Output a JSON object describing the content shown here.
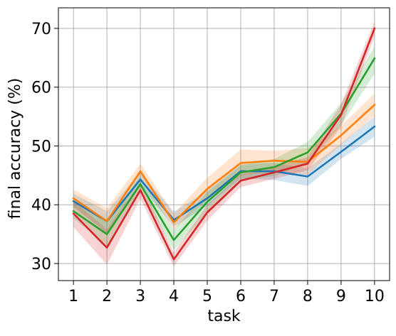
{
  "chart_data": {
    "type": "line",
    "title": "",
    "xlabel": "task",
    "ylabel": "final accuracy (%)",
    "x": [
      1,
      2,
      3,
      4,
      5,
      6,
      7,
      8,
      9,
      10
    ],
    "xticks": [
      "1",
      "2",
      "3",
      "4",
      "5",
      "6",
      "7",
      "8",
      "9",
      "10"
    ],
    "yticks": [
      "30",
      "40",
      "50",
      "60",
      "70"
    ],
    "xlim": [
      0.55,
      10.45
    ],
    "ylim": [
      27.1,
      73.5
    ],
    "grid": true,
    "series": [
      {
        "color": "#1f77b4",
        "values": [
          40.6,
          37.2,
          44.3,
          37.4,
          41.1,
          45.7,
          45.7,
          44.8,
          49.0,
          53.3
        ],
        "band_lower": [
          39.6,
          35.2,
          43.2,
          36.3,
          39.8,
          44.5,
          44.2,
          43.2,
          47.8,
          51.6
        ],
        "band_upper": [
          41.9,
          38.9,
          45.5,
          38.8,
          42.4,
          46.9,
          47.1,
          46.2,
          50.4,
          55.0
        ]
      },
      {
        "color": "#ff7f0e",
        "values": [
          41.1,
          37.2,
          45.7,
          37.0,
          42.7,
          47.1,
          47.5,
          47.3,
          51.8,
          57.0
        ],
        "band_lower": [
          39.7,
          35.2,
          44.3,
          35.8,
          40.8,
          44.9,
          45.7,
          45.1,
          50.2,
          55.1
        ],
        "band_upper": [
          42.6,
          39.4,
          47.0,
          38.5,
          44.6,
          49.4,
          49.2,
          49.6,
          53.5,
          58.9
        ]
      },
      {
        "color": "#2ca02c",
        "values": [
          38.9,
          35.0,
          43.5,
          34.0,
          40.5,
          45.5,
          46.4,
          48.9,
          55.5,
          64.9
        ],
        "band_lower": [
          37.7,
          33.0,
          42.3,
          32.3,
          38.6,
          44.1,
          44.9,
          47.1,
          53.5,
          62.3
        ],
        "band_upper": [
          40.3,
          37.3,
          44.8,
          35.8,
          42.2,
          46.7,
          47.8,
          50.7,
          57.3,
          67.0
        ]
      },
      {
        "color": "#d62728",
        "values": [
          38.5,
          32.7,
          42.5,
          30.7,
          38.7,
          44.1,
          45.5,
          47.0,
          55.3,
          70.0
        ],
        "band_lower": [
          36.2,
          29.8,
          41.0,
          29.5,
          37.3,
          43.0,
          44.4,
          45.9,
          53.2,
          68.6
        ],
        "band_upper": [
          40.7,
          35.8,
          43.9,
          31.9,
          40.0,
          45.2,
          46.6,
          48.1,
          57.1,
          71.2
        ]
      }
    ]
  }
}
